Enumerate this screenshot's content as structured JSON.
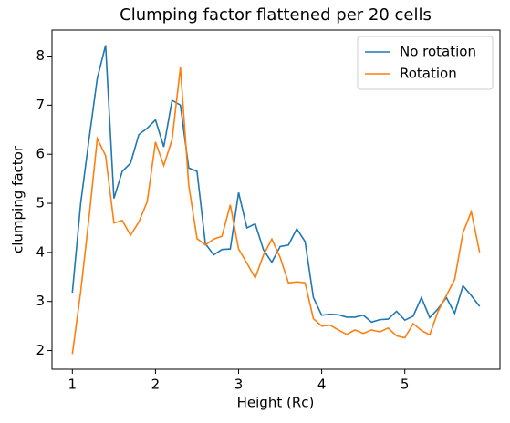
{
  "chart_data": {
    "type": "line",
    "title": "Clumping factor flattened per 20 cells",
    "x_label": "Height (Rc)",
    "y_label": "clumping factor",
    "x": [
      1.0,
      1.1,
      1.2,
      1.3,
      1.4,
      1.5,
      1.6,
      1.7,
      1.8,
      1.9,
      2.0,
      2.1,
      2.2,
      2.3,
      2.4,
      2.5,
      2.6,
      2.7,
      2.8,
      2.9,
      3.0,
      3.1,
      3.2,
      3.3,
      3.4,
      3.5,
      3.6,
      3.7,
      3.8,
      3.9,
      4.0,
      4.1,
      4.2,
      4.3,
      4.4,
      4.5,
      4.6,
      4.7,
      4.8,
      4.9,
      5.0,
      5.1,
      5.2,
      5.3,
      5.4,
      5.5,
      5.6,
      5.7,
      5.8,
      5.9
    ],
    "series": [
      {
        "name": "No rotation",
        "color": "#1f77b4",
        "values": [
          3.18,
          5.0,
          6.3,
          7.55,
          8.22,
          5.1,
          5.65,
          5.82,
          6.4,
          6.53,
          6.7,
          6.15,
          7.1,
          7.0,
          5.72,
          5.65,
          4.18,
          3.95,
          4.06,
          4.07,
          5.22,
          4.5,
          4.58,
          4.05,
          3.8,
          4.12,
          4.15,
          4.48,
          4.22,
          3.08,
          2.72,
          2.74,
          2.73,
          2.68,
          2.68,
          2.72,
          2.58,
          2.63,
          2.64,
          2.8,
          2.62,
          2.7,
          3.08,
          2.67,
          2.85,
          3.08,
          2.76,
          3.32,
          3.12,
          2.9
        ]
      },
      {
        "name": "Rotation",
        "color": "#ff7f0e",
        "values": [
          1.93,
          3.2,
          4.7,
          6.32,
          5.97,
          4.6,
          4.65,
          4.35,
          4.62,
          5.03,
          6.25,
          5.77,
          6.3,
          7.77,
          5.37,
          4.28,
          4.15,
          4.27,
          4.33,
          4.97,
          4.07,
          3.78,
          3.48,
          3.95,
          4.27,
          3.9,
          3.38,
          3.4,
          3.38,
          2.65,
          2.5,
          2.52,
          2.42,
          2.33,
          2.42,
          2.35,
          2.42,
          2.38,
          2.46,
          2.3,
          2.26,
          2.55,
          2.41,
          2.32,
          2.8,
          3.12,
          3.45,
          4.4,
          4.83,
          4.0
        ]
      }
    ],
    "xlim": [
      0.755,
      6.145
    ],
    "ylim": [
      1.62,
      8.53
    ],
    "xticks": [
      1,
      2,
      3,
      4,
      5
    ],
    "yticks": [
      2,
      3,
      4,
      5,
      6,
      7,
      8
    ],
    "legend": "upper right"
  }
}
